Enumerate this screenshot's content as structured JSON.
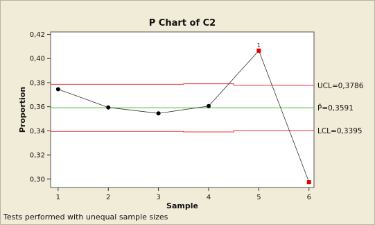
{
  "chart_data": {
    "type": "line",
    "title": "P Chart of C2",
    "xlabel": "Sample",
    "ylabel": "Proportion",
    "x": [
      1,
      2,
      3,
      4,
      5,
      6
    ],
    "x_tick_labels": [
      "1",
      "2",
      "3",
      "4",
      "5",
      "6"
    ],
    "y_tick_labels": [
      "0,30",
      "0,32",
      "0,34",
      "0,36",
      "0,38",
      "0,40",
      "0,42"
    ],
    "ylim": [
      0.293,
      0.422
    ],
    "xlim": [
      0.85,
      6.1
    ],
    "grid": false,
    "series": [
      {
        "values": [
          0.3745,
          0.3594,
          0.3545,
          0.3605,
          0.4065,
          0.2975
        ],
        "out_of_control": [
          false,
          false,
          false,
          false,
          true,
          true
        ],
        "point_labels": [
          "",
          "",
          "",
          "",
          "1",
          ""
        ]
      }
    ],
    "center_line": {
      "value": 0.3591,
      "label": "P̄=0,3591"
    },
    "ucl": {
      "label": "UCL=0,3786",
      "steps": [
        {
          "x_from": 0.85,
          "x_to": 3.5,
          "value": 0.3786
        },
        {
          "x_from": 3.5,
          "x_to": 4.5,
          "value": 0.379
        },
        {
          "x_from": 4.5,
          "x_to": 6.1,
          "value": 0.3777
        }
      ]
    },
    "lcl": {
      "label": "LCL=0,3395",
      "steps": [
        {
          "x_from": 0.85,
          "x_to": 3.5,
          "value": 0.3395
        },
        {
          "x_from": 3.5,
          "x_to": 4.5,
          "value": 0.3391
        },
        {
          "x_from": 4.5,
          "x_to": 6.1,
          "value": 0.3403
        }
      ]
    },
    "colors": {
      "background": "#f1ecd8",
      "plot_area": "#ffffff",
      "series_line": "#333333",
      "point": "#000000",
      "out_of_control_point": "#e00000",
      "center_line": "#66cc55",
      "limit_lines": "#ee3333"
    }
  },
  "footnote": "Tests performed with unequal sample sizes"
}
